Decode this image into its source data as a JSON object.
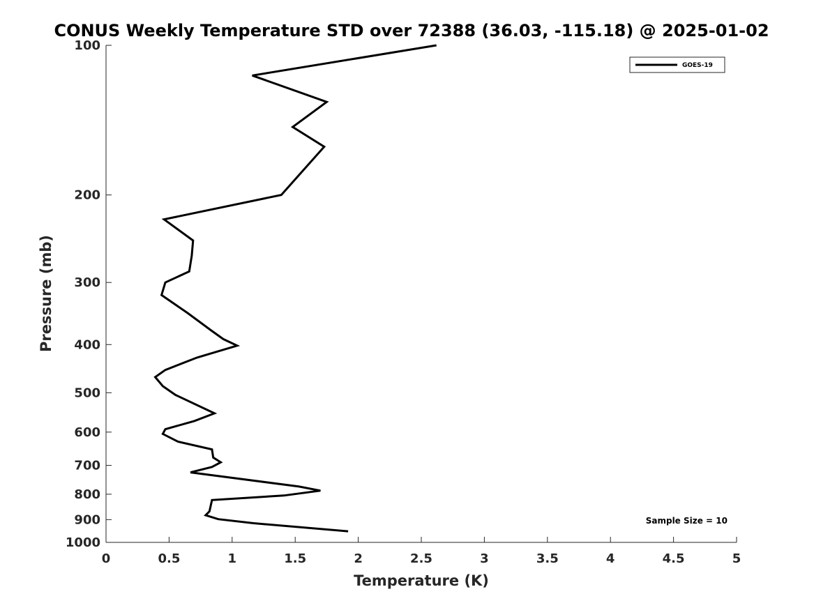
{
  "chart_data": {
    "type": "line",
    "title": "CONUS Weekly Temperature STD over 72388 (36.03, -115.18) @ 2025-01-02",
    "xlabel": "Temperature (K)",
    "ylabel": "Pressure (mb)",
    "xlim": [
      0,
      5
    ],
    "ylim": [
      1000,
      100
    ],
    "yscale": "log",
    "y_reversed": true,
    "grid": false,
    "legend_position": "top-right",
    "x_ticks": [
      "0",
      "0.5",
      "1",
      "1.5",
      "2",
      "2.5",
      "3",
      "3.5",
      "4",
      "4.5",
      "5"
    ],
    "y_ticks": [
      "100",
      "200",
      "300",
      "400",
      "500",
      "600",
      "700",
      "800",
      "900",
      "1000"
    ],
    "series": [
      {
        "name": "GOES-19",
        "color": "#000000",
        "points": [
          {
            "x": 2.62,
            "y": 100
          },
          {
            "x": 1.16,
            "y": 115
          },
          {
            "x": 1.75,
            "y": 130
          },
          {
            "x": 1.48,
            "y": 146
          },
          {
            "x": 1.73,
            "y": 160
          },
          {
            "x": 1.39,
            "y": 200
          },
          {
            "x": 0.46,
            "y": 224
          },
          {
            "x": 0.69,
            "y": 247
          },
          {
            "x": 0.68,
            "y": 265
          },
          {
            "x": 0.66,
            "y": 285
          },
          {
            "x": 0.47,
            "y": 300
          },
          {
            "x": 0.44,
            "y": 318
          },
          {
            "x": 0.65,
            "y": 346
          },
          {
            "x": 0.83,
            "y": 374
          },
          {
            "x": 0.93,
            "y": 390
          },
          {
            "x": 1.04,
            "y": 402
          },
          {
            "x": 0.72,
            "y": 425
          },
          {
            "x": 0.47,
            "y": 450
          },
          {
            "x": 0.39,
            "y": 465
          },
          {
            "x": 0.45,
            "y": 485
          },
          {
            "x": 0.55,
            "y": 505
          },
          {
            "x": 0.86,
            "y": 550
          },
          {
            "x": 0.7,
            "y": 570
          },
          {
            "x": 0.47,
            "y": 592
          },
          {
            "x": 0.45,
            "y": 605
          },
          {
            "x": 0.57,
            "y": 627
          },
          {
            "x": 0.84,
            "y": 650
          },
          {
            "x": 0.85,
            "y": 675
          },
          {
            "x": 0.91,
            "y": 690
          },
          {
            "x": 0.84,
            "y": 705
          },
          {
            "x": 0.67,
            "y": 723
          },
          {
            "x": 1.53,
            "y": 772
          },
          {
            "x": 1.7,
            "y": 787
          },
          {
            "x": 1.41,
            "y": 805
          },
          {
            "x": 0.84,
            "y": 822
          },
          {
            "x": 0.82,
            "y": 866
          },
          {
            "x": 0.79,
            "y": 882
          },
          {
            "x": 0.89,
            "y": 898
          },
          {
            "x": 1.17,
            "y": 915
          },
          {
            "x": 1.92,
            "y": 950
          }
        ]
      }
    ],
    "annotation": "Sample Size = 10"
  }
}
